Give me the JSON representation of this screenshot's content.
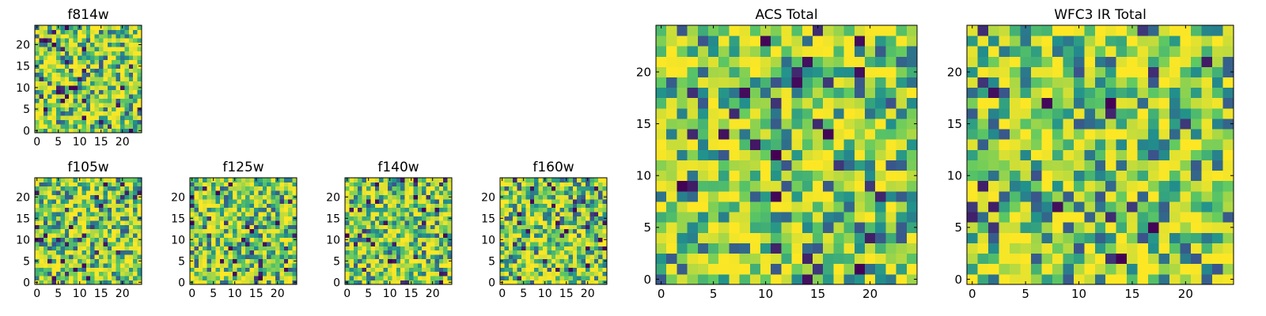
{
  "figure": {
    "background": "#ffffff"
  },
  "colormap": {
    "name": "viridis",
    "stops": [
      "#440154",
      "#3b528b",
      "#21918c",
      "#5ec962",
      "#fde725"
    ]
  },
  "chart_data": [
    {
      "type": "heatmap",
      "title": "f814w",
      "xlabel": "",
      "ylabel": "",
      "xlim": [
        -0.5,
        24.5
      ],
      "ylim": [
        -0.5,
        24.5
      ],
      "xticks": [
        0,
        5,
        10,
        15,
        20
      ],
      "yticks": [
        0,
        5,
        10,
        15,
        20
      ],
      "grid": false,
      "colormap": "viridis",
      "image_size": [
        25,
        25
      ],
      "random_seed": 11,
      "value_range": [
        0,
        1
      ]
    },
    {
      "type": "heatmap",
      "title": "f105w",
      "xlabel": "",
      "ylabel": "",
      "xlim": [
        -0.5,
        24.5
      ],
      "ylim": [
        -0.5,
        24.5
      ],
      "xticks": [
        0,
        5,
        10,
        15,
        20
      ],
      "yticks": [
        0,
        5,
        10,
        15,
        20
      ],
      "grid": false,
      "colormap": "viridis",
      "image_size": [
        25,
        25
      ],
      "random_seed": 23,
      "value_range": [
        0,
        1
      ]
    },
    {
      "type": "heatmap",
      "title": "f125w",
      "xlabel": "",
      "ylabel": "",
      "xlim": [
        -0.5,
        24.5
      ],
      "ylim": [
        -0.5,
        24.5
      ],
      "xticks": [
        0,
        5,
        10,
        15,
        20
      ],
      "yticks": [
        0,
        5,
        10,
        15,
        20
      ],
      "grid": false,
      "colormap": "viridis",
      "image_size": [
        25,
        25
      ],
      "random_seed": 37,
      "value_range": [
        0,
        1
      ]
    },
    {
      "type": "heatmap",
      "title": "f140w",
      "xlabel": "",
      "ylabel": "",
      "xlim": [
        -0.5,
        24.5
      ],
      "ylim": [
        -0.5,
        24.5
      ],
      "xticks": [
        0,
        5,
        10,
        15,
        20
      ],
      "yticks": [
        0,
        5,
        10,
        15,
        20
      ],
      "grid": false,
      "colormap": "viridis",
      "image_size": [
        25,
        25
      ],
      "random_seed": 41,
      "value_range": [
        0,
        1
      ]
    },
    {
      "type": "heatmap",
      "title": "f160w",
      "xlabel": "",
      "ylabel": "",
      "xlim": [
        -0.5,
        24.5
      ],
      "ylim": [
        -0.5,
        24.5
      ],
      "xticks": [
        0,
        5,
        10,
        15,
        20
      ],
      "yticks": [
        0,
        5,
        10,
        15,
        20
      ],
      "grid": false,
      "colormap": "viridis",
      "image_size": [
        25,
        25
      ],
      "random_seed": 53,
      "value_range": [
        0,
        1
      ]
    },
    {
      "type": "heatmap",
      "title": "ACS Total",
      "xlabel": "",
      "ylabel": "",
      "xlim": [
        -0.5,
        24.5
      ],
      "ylim": [
        -0.5,
        24.5
      ],
      "xticks": [
        0,
        5,
        10,
        15,
        20
      ],
      "yticks": [
        0,
        5,
        10,
        15,
        20
      ],
      "grid": false,
      "colormap": "viridis",
      "image_size": [
        25,
        25
      ],
      "random_seed": 67,
      "value_range": [
        0,
        1
      ]
    },
    {
      "type": "heatmap",
      "title": "WFC3 IR Total",
      "xlabel": "",
      "ylabel": "",
      "xlim": [
        -0.5,
        24.5
      ],
      "ylim": [
        -0.5,
        24.5
      ],
      "xticks": [
        0,
        5,
        10,
        15,
        20
      ],
      "yticks": [
        0,
        5,
        10,
        15,
        20
      ],
      "grid": false,
      "colormap": "viridis",
      "image_size": [
        25,
        25
      ],
      "random_seed": 79,
      "value_range": [
        0,
        1
      ]
    }
  ]
}
